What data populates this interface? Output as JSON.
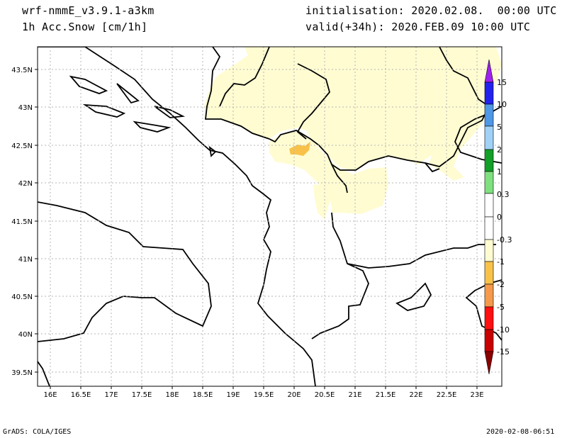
{
  "header": {
    "model": "wrf-nmmE_v3.9.1-a3km",
    "field": "1h Acc.Snow [cm/1h]",
    "init": "initialisation: 2020.02.08.  00:00 UTC",
    "valid": "valid(+34h): 2020.FEB.09 10:00 UTC"
  },
  "footer": {
    "credit": "GrADS: COLA/IGES",
    "timestamp": "2020-02-08-06:51"
  },
  "map": {
    "lon_ticks": [
      "16E",
      "16.5E",
      "17E",
      "17.5E",
      "18E",
      "18.5E",
      "19E",
      "19.5E",
      "20E",
      "20.5E",
      "21E",
      "21.5E",
      "22E",
      "22.5E",
      "23E"
    ],
    "lat_ticks": [
      "43.5N",
      "43N",
      "42.5N",
      "42N",
      "41.5N",
      "41N",
      "40.5N",
      "40N",
      "39.5N"
    ],
    "lon_range": [
      15.75,
      23.25
    ],
    "lat_range": [
      39.3,
      43.75
    ],
    "grid": true
  },
  "legend": {
    "labels": [
      "15",
      "10",
      "5",
      "2",
      "1",
      "0.3",
      "0",
      "-0.3",
      "-1",
      "-2",
      "-5",
      "-10",
      "-15"
    ],
    "colors": {
      "top_arrow": "#a020f0",
      "c15": "#2222ee",
      "c10": "#4f98e8",
      "c5": "#a0d2f8",
      "c2": "#13a028",
      "c1": "#7fe07f",
      "c03": "#ffffff",
      "cneg03": "#fffcd2",
      "cneg1": "#f8c24a",
      "cneg2": "#f59a4a",
      "cneg5": "#ff1010",
      "cneg10": "#c80000",
      "bottom_arrow": "#8b0000"
    }
  },
  "colors": {
    "light_snow": "#fffcd2",
    "moderate_snow": "#f8c24a",
    "coastline": "#000000",
    "grid": "#b0b0b0"
  }
}
